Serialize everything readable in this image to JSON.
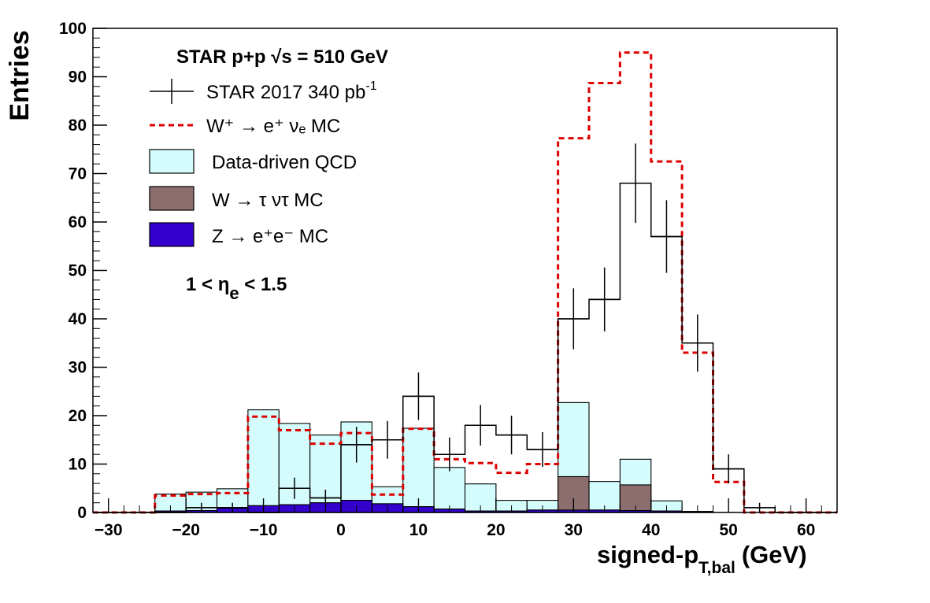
{
  "chart_data": {
    "type": "histogram",
    "xlabel": "signed-p",
    "xlabel_sub": "T,bal",
    "xlabel_unit": "(GeV)",
    "ylabel": "Entries",
    "xlim": [
      -32,
      64
    ],
    "ylim": [
      0,
      100
    ],
    "x_ticks": [
      -30,
      -20,
      -10,
      0,
      10,
      20,
      30,
      40,
      50,
      60
    ],
    "x_tick_labels": [
      "−30",
      "−20",
      "−10",
      "0",
      "10",
      "20",
      "30",
      "40",
      "50",
      "60"
    ],
    "y_ticks": [
      0,
      10,
      20,
      30,
      40,
      50,
      60,
      70,
      80,
      90,
      100
    ],
    "y_tick_labels": [
      "0",
      "10",
      "20",
      "30",
      "40",
      "50",
      "60",
      "70",
      "80",
      "90",
      "100"
    ],
    "bin_edges": [
      -32,
      -28,
      -24,
      -20,
      -16,
      -12,
      -8,
      -4,
      0,
      4,
      8,
      12,
      16,
      20,
      24,
      28,
      32,
      36,
      40,
      44,
      48,
      52,
      56,
      60,
      64
    ],
    "annotations": {
      "heading": "STAR p+p  √s = 510 GeV",
      "eta_range": "1 < η",
      "eta_sub": "e",
      "eta_end": " < 1.5"
    },
    "legend": [
      {
        "label": "STAR 2017 340 pb",
        "sup": "-1",
        "style": "data"
      },
      {
        "label": "W⁺ → e⁺ νₑ MC",
        "style": "dashed",
        "color": "#dd0000"
      },
      {
        "label": "Data-driven QCD",
        "style": "fill",
        "color": "#d4fcfc"
      },
      {
        "label": "W → τ ντ MC",
        "style": "fill",
        "color": "#8c6e6e"
      },
      {
        "label": "Z → e⁺e⁻ MC",
        "style": "fill",
        "color": "#3300cc"
      }
    ],
    "series": [
      {
        "name": "STAR 2017 340 pb-1",
        "kind": "data",
        "values": [
          0,
          0,
          0,
          1,
          1,
          0,
          5,
          3,
          14,
          15,
          24,
          12,
          18,
          16,
          13,
          40,
          44,
          68,
          57,
          35,
          9,
          1,
          0,
          0
        ],
        "errors": [
          0,
          0,
          0,
          1,
          1,
          0,
          2.2,
          1.7,
          3.7,
          3.9,
          4.9,
          3.5,
          4.2,
          4.0,
          3.6,
          6.3,
          6.6,
          8.2,
          7.5,
          5.9,
          3.0,
          1,
          0,
          0
        ],
        "plot_markers": [
          1,
          1,
          1,
          1,
          1,
          1,
          1,
          1,
          1,
          1,
          1,
          1,
          1,
          1,
          1,
          1,
          1,
          1,
          1,
          1,
          1,
          1,
          1,
          1
        ]
      },
      {
        "name": "W⁺ → e⁺ νₑ MC",
        "kind": "dashed",
        "color": "#dd0000",
        "values": [
          0,
          0,
          3.5,
          3.8,
          4,
          19.8,
          17,
          14.2,
          16.4,
          3.7,
          17.3,
          11,
          10.2,
          8.2,
          10,
          77.3,
          88.7,
          95,
          72.5,
          33,
          6.3,
          0,
          0,
          0
        ]
      },
      {
        "name": "Data-driven QCD",
        "kind": "stack",
        "color": "#d4fcfc",
        "values": [
          0,
          0,
          3.5,
          3.8,
          4,
          19.8,
          16.8,
          14,
          16.2,
          3.5,
          16.2,
          8.6,
          5.6,
          2.2,
          2.0,
          15.3,
          5.9,
          5.3,
          2.1,
          0,
          0,
          0,
          0,
          0
        ]
      },
      {
        "name": "W → τ ντ MC",
        "kind": "stack",
        "color": "#8c6e6e",
        "values": [
          0,
          0,
          0,
          0,
          0,
          0,
          0,
          0,
          0,
          0,
          0,
          0,
          0,
          0,
          0,
          6.9,
          0,
          5.3,
          0,
          0,
          0,
          0,
          0,
          0
        ]
      },
      {
        "name": "Z → e⁺e⁻ MC",
        "kind": "stack",
        "color": "#3300cc",
        "values": [
          0,
          0,
          0.3,
          0.4,
          0.9,
          1.4,
          1.6,
          2.0,
          2.5,
          1.8,
          1.2,
          0.7,
          0.3,
          0.3,
          0.5,
          0.5,
          0.5,
          0.4,
          0.3,
          0.2,
          0,
          0,
          0,
          0
        ]
      }
    ]
  }
}
